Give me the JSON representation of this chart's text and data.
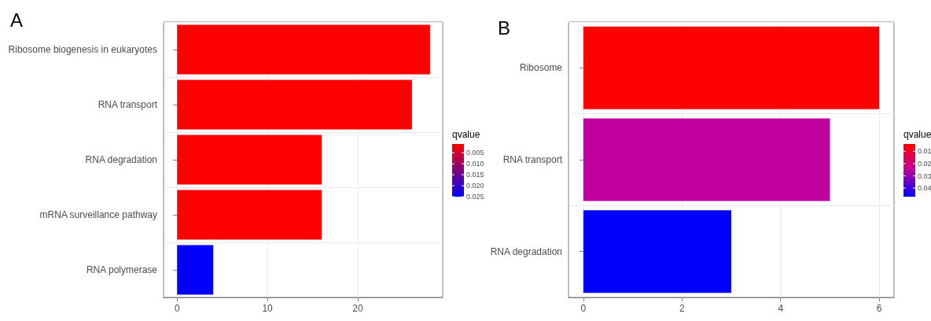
{
  "chart_data": [
    {
      "type": "bar",
      "title": "A",
      "orientation": "horizontal",
      "categories": [
        "Ribosome biogenesis in eukaryotes",
        "RNA transport",
        "RNA degradation",
        "mRNA surveillance pathway",
        "RNA polymerase"
      ],
      "values": [
        28,
        26,
        16,
        16,
        4
      ],
      "colors": [
        "#ff0000",
        "#ff0000",
        "#ff0000",
        "#ff0000",
        "#0000ff"
      ],
      "cvalues": [
        0.001,
        0.001,
        0.001,
        0.001,
        0.025
      ],
      "clabel": "qvalue",
      "clim": [
        0.001,
        0.025
      ],
      "cticks": [
        0.005,
        {
          "value": 0.01,
          "label": "0.010"
        },
        0.015,
        {
          "value": 0.02,
          "label": "0.020"
        },
        0.025
      ],
      "xlim": [
        -1.5,
        29.4
      ],
      "xticks": [
        0,
        10,
        20
      ],
      "grid": true
    },
    {
      "type": "bar",
      "title": "B",
      "orientation": "horizontal",
      "categories": [
        "Ribosome",
        "RNA transport",
        "RNA degradation"
      ],
      "values": [
        6,
        5,
        3
      ],
      "colors": [
        "#ff0000",
        "#c0009c",
        "#0000ff"
      ],
      "cvalues": [
        0.004,
        0.025,
        0.047
      ],
      "clabel": "qvalue",
      "clim": [
        0.004,
        0.047
      ],
      "cticks": [
        0.01,
        0.02,
        0.03,
        0.04
      ],
      "xlim": [
        -0.3,
        6.3
      ],
      "xticks": [
        0,
        2,
        4,
        6
      ],
      "grid": true
    }
  ]
}
